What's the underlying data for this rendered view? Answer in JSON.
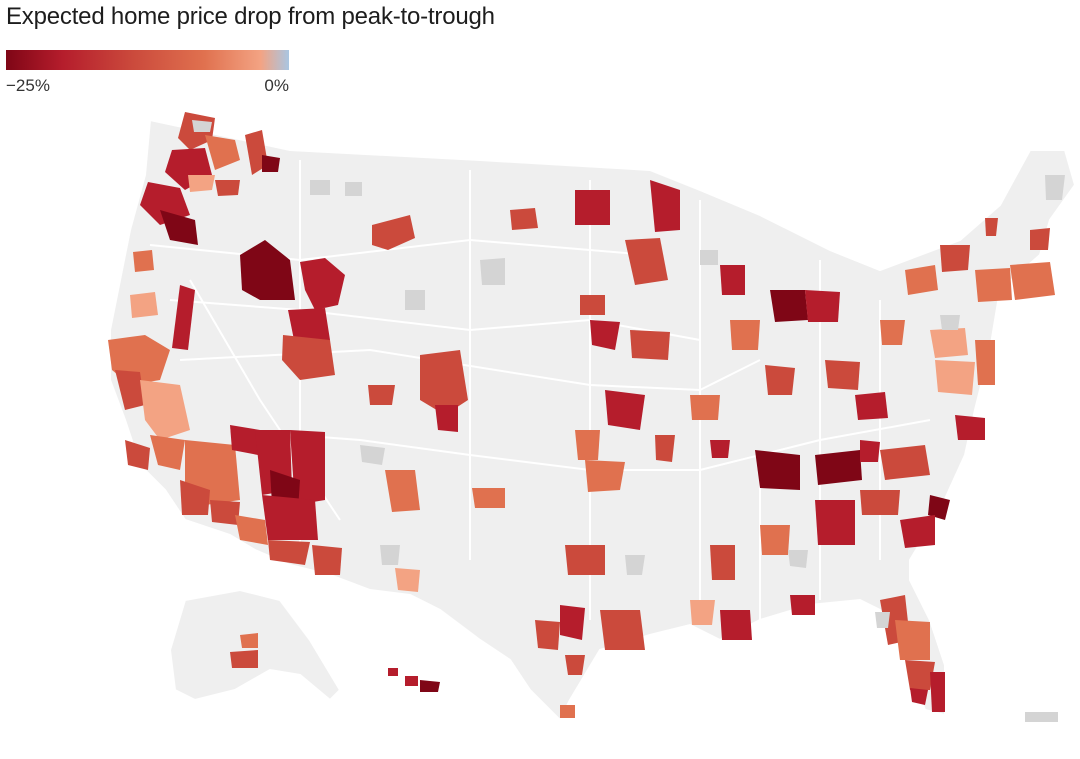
{
  "title": "Expected home price drop from peak-to-trough",
  "legend": {
    "min_label": "−25%",
    "max_label": "0%",
    "min_value": -25,
    "max_value": 0,
    "stops": [
      {
        "value": -25,
        "color": "#7f0616"
      },
      {
        "value": -20,
        "color": "#b51d2c"
      },
      {
        "value": -15,
        "color": "#cb4a3c"
      },
      {
        "value": -10,
        "color": "#e0714f"
      },
      {
        "value": -5,
        "color": "#f3a383"
      },
      {
        "value": 0,
        "color": "#a9c6e2"
      }
    ]
  },
  "colors": {
    "land": "#efefef",
    "no_data": "#d4d4d4",
    "borders": "#ffffff"
  }
}
